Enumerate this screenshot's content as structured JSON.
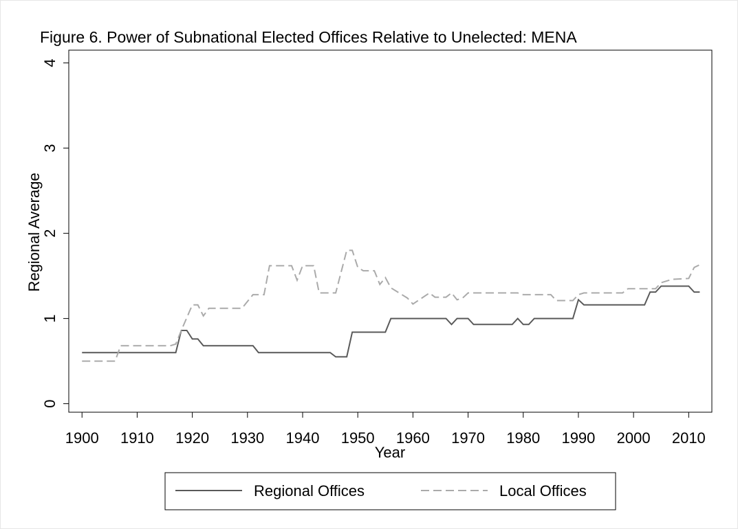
{
  "chart_data": {
    "type": "line",
    "title": "Figure 6.  Power of Subnational Elected Offices Relative to Unelected: MENA",
    "xlabel": "Year",
    "ylabel": "Regional Average",
    "xlim": [
      1897.6,
      2014.2
    ],
    "ylim": [
      -0.1,
      4.15
    ],
    "xticks": [
      1900,
      1910,
      1920,
      1930,
      1940,
      1950,
      1960,
      1970,
      1980,
      1990,
      2000,
      2010
    ],
    "yticks": [
      0,
      1,
      2,
      3,
      4
    ],
    "legend": "bottom",
    "series": [
      {
        "name": "Regional Offices",
        "color": "#595959",
        "dash": "solid",
        "x": [
          1900,
          1917,
          1918,
          1919,
          1920,
          1921,
          1922,
          1931,
          1932,
          1945,
          1946,
          1948,
          1949,
          1955,
          1956,
          1966,
          1967,
          1968,
          1970,
          1971,
          1978,
          1979,
          1980,
          1981,
          1982,
          1989,
          1990,
          1991,
          2002,
          2003,
          2004,
          2005,
          2010,
          2011,
          2012
        ],
        "values": [
          0.6,
          0.6,
          0.86,
          0.86,
          0.76,
          0.76,
          0.68,
          0.68,
          0.6,
          0.6,
          0.55,
          0.55,
          0.84,
          0.84,
          1.0,
          1.0,
          0.93,
          1.0,
          1.0,
          0.93,
          0.93,
          1.0,
          0.93,
          0.93,
          1.0,
          1.0,
          1.22,
          1.16,
          1.16,
          1.31,
          1.31,
          1.38,
          1.38,
          1.31,
          1.31
        ]
      },
      {
        "name": "Local Offices",
        "color": "#aaaaaa",
        "dash": "dashed",
        "x": [
          1900,
          1906,
          1907,
          1916,
          1917,
          1918,
          1920,
          1921,
          1922,
          1923,
          1929,
          1931,
          1933,
          1934,
          1938,
          1939,
          1940,
          1942,
          1943,
          1946,
          1948,
          1949,
          1950,
          1951,
          1953,
          1954,
          1955,
          1956,
          1958,
          1959,
          1960,
          1963,
          1964,
          1966,
          1967,
          1968,
          1969,
          1970,
          1979,
          1980,
          1985,
          1986,
          1989,
          1990,
          1991,
          1998,
          1999,
          2004,
          2005,
          2007,
          2010,
          2011,
          2012
        ],
        "values": [
          0.5,
          0.5,
          0.68,
          0.68,
          0.7,
          0.86,
          1.16,
          1.16,
          1.03,
          1.12,
          1.12,
          1.28,
          1.28,
          1.62,
          1.62,
          1.45,
          1.62,
          1.62,
          1.3,
          1.3,
          1.8,
          1.8,
          1.6,
          1.56,
          1.56,
          1.4,
          1.48,
          1.36,
          1.28,
          1.24,
          1.17,
          1.3,
          1.25,
          1.25,
          1.3,
          1.22,
          1.24,
          1.3,
          1.3,
          1.28,
          1.28,
          1.21,
          1.21,
          1.28,
          1.3,
          1.3,
          1.35,
          1.35,
          1.42,
          1.46,
          1.47,
          1.6,
          1.63
        ]
      }
    ]
  }
}
